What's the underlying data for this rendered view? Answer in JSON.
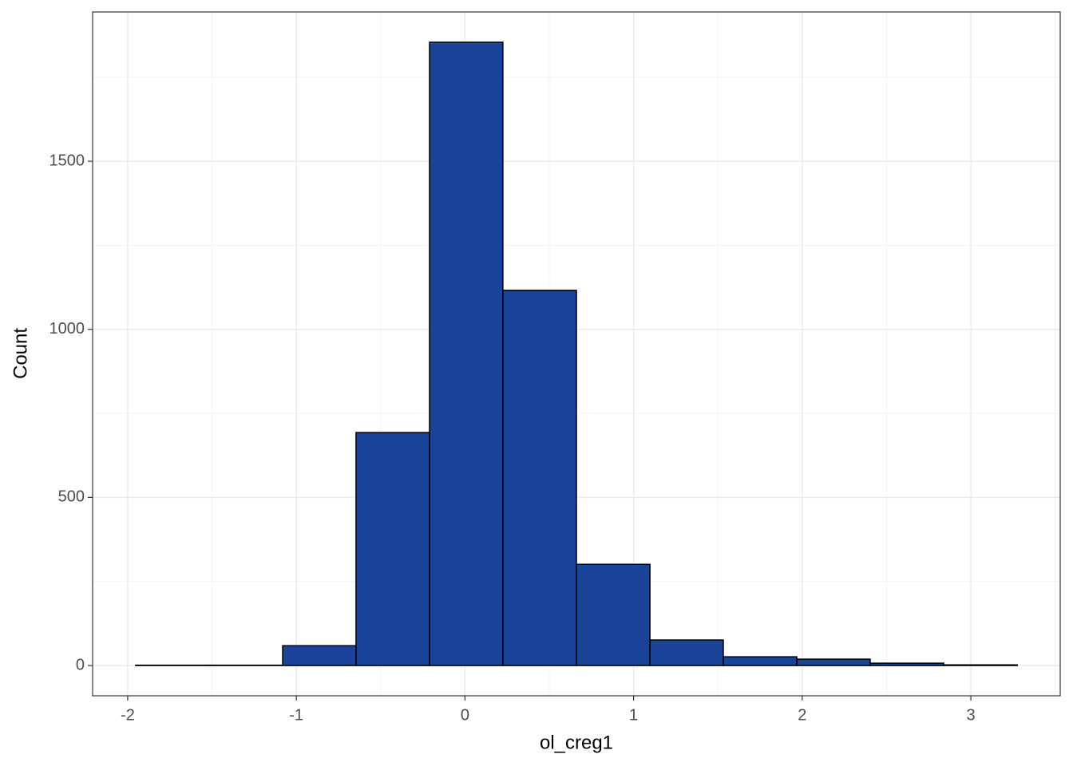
{
  "chart_data": {
    "type": "histogram",
    "x_label": "ol_creg1",
    "y_label": "Count",
    "bins": [
      -1.953,
      -1.517,
      -1.081,
      -0.646,
      -0.21,
      0.225,
      0.661,
      1.097,
      1.532,
      1.968,
      2.403,
      2.839,
      3.275
    ],
    "values": [
      1,
      1,
      59,
      693,
      1854,
      1116,
      301,
      76,
      26,
      19,
      7,
      2
    ],
    "color": "#1a4499",
    "xlim": [
      -2.208,
      3.53
    ],
    "ylim": [
      -90,
      1944
    ],
    "xticks": [
      -2,
      -1,
      0,
      1,
      2,
      3
    ],
    "yticks": [
      0,
      500,
      1000,
      1500
    ],
    "grid": true
  }
}
